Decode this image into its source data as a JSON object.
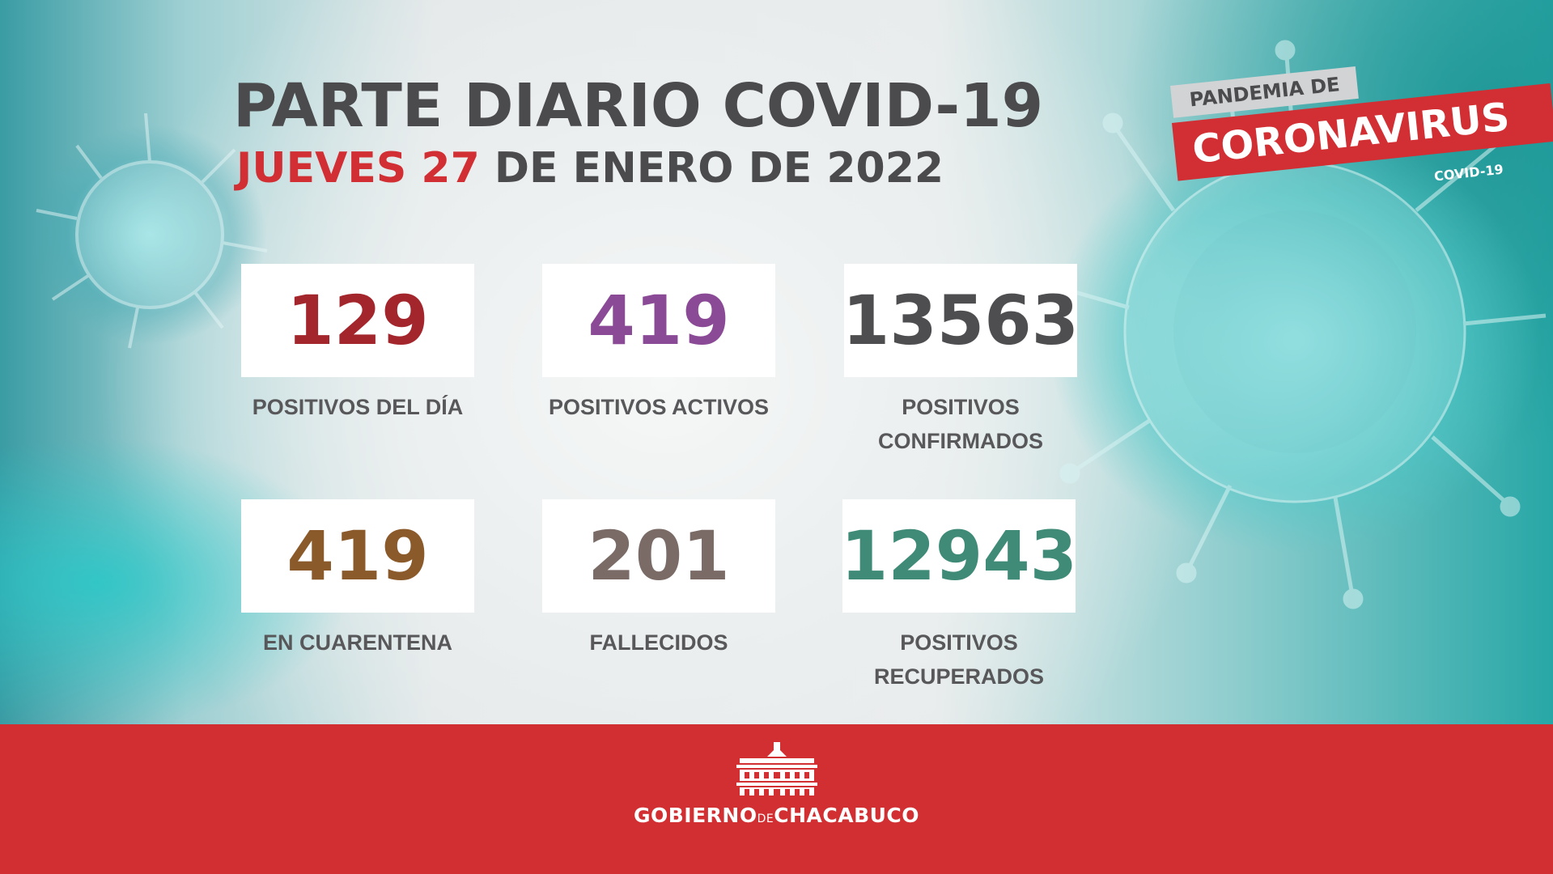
{
  "header": {
    "title": "PARTE DIARIO COVID-19",
    "date_day": "JUEVES 27",
    "date_rest": " DE ENERO DE 2022"
  },
  "badge": {
    "top": "PANDEMIA DE",
    "main": "CORONAVIRUS",
    "sub": "COVID-19"
  },
  "stats": {
    "positivos_dia": {
      "value": "129",
      "label": "POSITIVOS DEL DÍA",
      "color": "#a3262d"
    },
    "positivos_activos": {
      "value": "419",
      "label": "POSITIVOS ACTIVOS",
      "color": "#8a4a95"
    },
    "positivos_confirmados": {
      "value": "13563",
      "label_line1": "POSITIVOS",
      "label_line2": "CONFIRMADOS",
      "color": "#4e4e50"
    },
    "en_cuarentena": {
      "value": "419",
      "label": "EN CUARENTENA",
      "color": "#8b5a2b"
    },
    "fallecidos": {
      "value": "201",
      "label": "FALLECIDOS",
      "color": "#7b6b66"
    },
    "positivos_recuperados": {
      "value": "12943",
      "label_line1": "POSITIVOS",
      "label_line2": "RECUPERADOS",
      "color": "#3f8b78"
    }
  },
  "footer": {
    "brand_left": "GOBIERNO",
    "brand_mid": "DE",
    "brand_right": "CHACABUCO"
  },
  "icons": {
    "virus": "virus-illustration-icon",
    "logo": "municipal-building-icon"
  }
}
